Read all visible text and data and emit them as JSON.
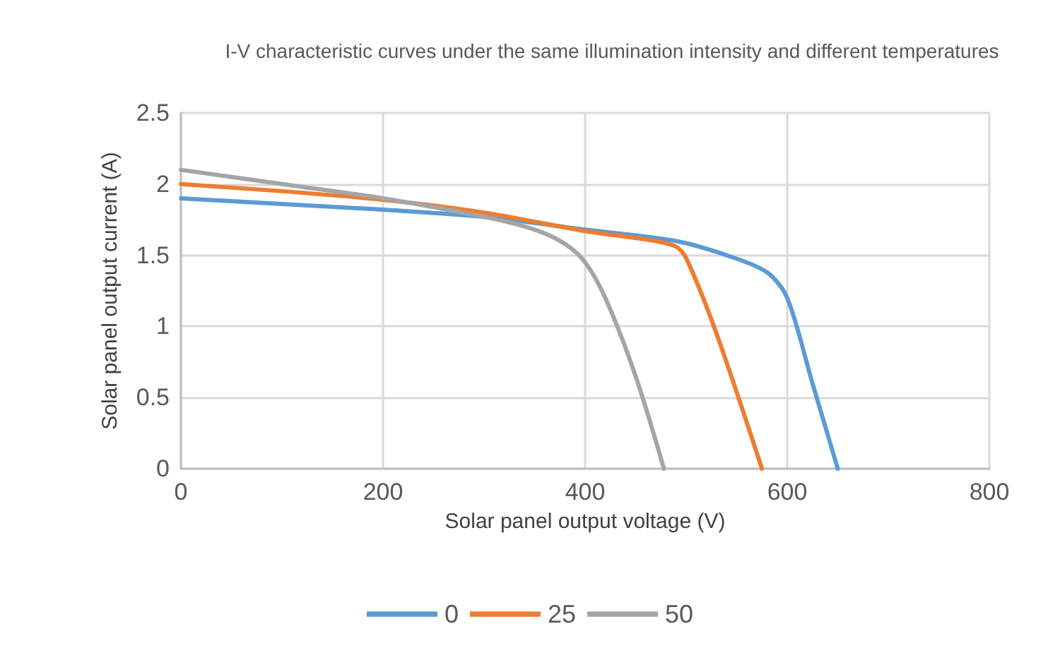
{
  "chart_data": {
    "type": "line",
    "title": "I-V characteristic curves under the same illumination intensity and different temperatures",
    "xlabel": "Solar panel output voltage (V)",
    "ylabel": "Solar panel output current (A)",
    "series": [
      {
        "name": "0",
        "color": "#5b9bd5",
        "x": [
          0,
          100,
          200,
          300,
          400,
          490,
          540,
          580,
          600,
          625,
          650
        ],
        "values": [
          1.9,
          1.86,
          1.82,
          1.77,
          1.68,
          1.6,
          1.5,
          1.38,
          1.2,
          0.6,
          0
        ]
      },
      {
        "name": "25",
        "color": "#ed7d31",
        "x": [
          0,
          100,
          200,
          300,
          400,
          470,
          490,
          500,
          530,
          575
        ],
        "values": [
          2.0,
          1.95,
          1.89,
          1.8,
          1.67,
          1.6,
          1.56,
          1.48,
          0.95,
          0
        ]
      },
      {
        "name": "50",
        "color": "#a5a5a5",
        "x": [
          0,
          100,
          200,
          300,
          350,
          380,
          400,
          420,
          450,
          478
        ],
        "values": [
          2.1,
          2.0,
          1.9,
          1.77,
          1.68,
          1.58,
          1.45,
          1.2,
          0.65,
          0
        ]
      }
    ],
    "xlim": [
      0,
      800
    ],
    "xticks": [
      0,
      200,
      400,
      600,
      800
    ],
    "ylim": [
      0,
      2.5
    ],
    "yticks": [
      0,
      0.5,
      1,
      1.5,
      2,
      2.5
    ],
    "grid": true,
    "legend": "bottom",
    "marker": "none",
    "line_style": "solid"
  }
}
